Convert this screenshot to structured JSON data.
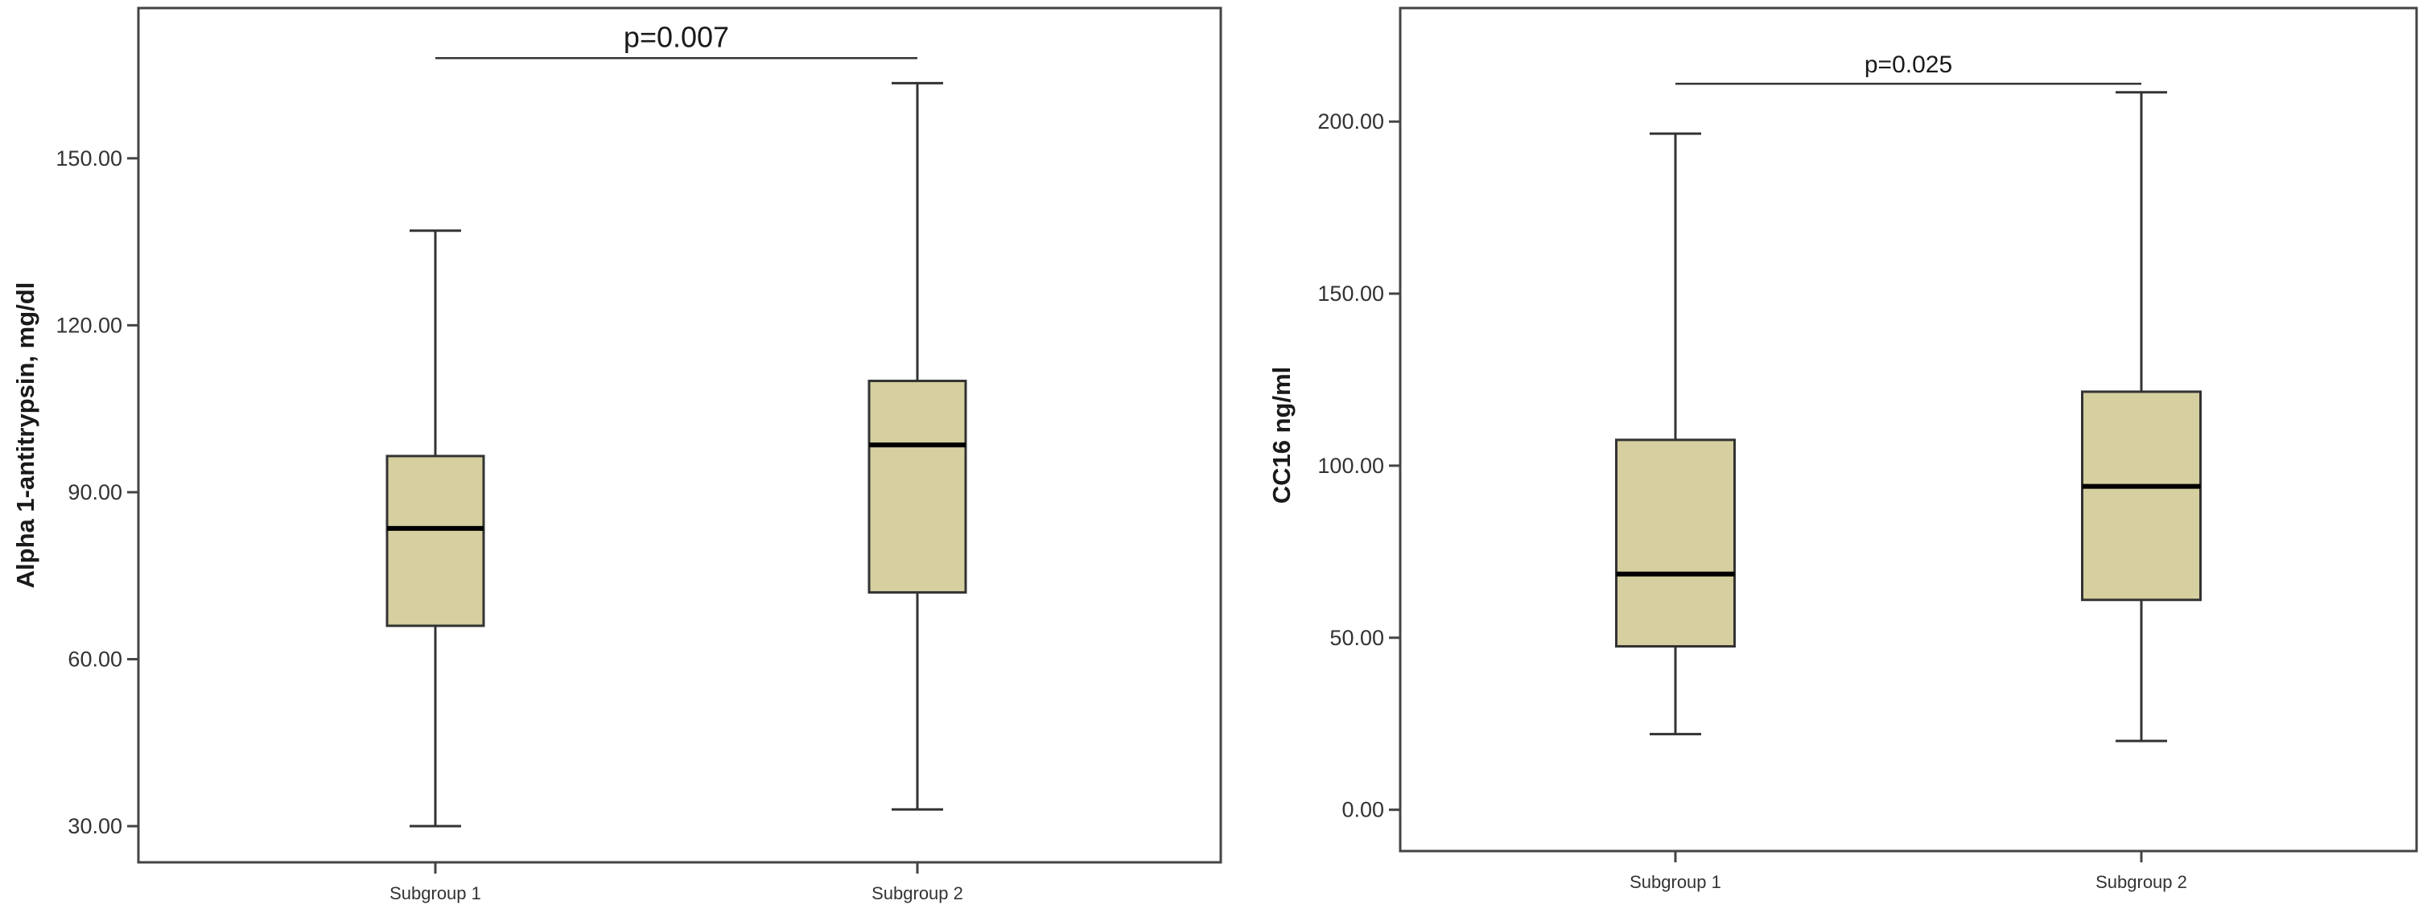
{
  "chart_data": [
    {
      "type": "boxplot",
      "ylabel": "Alpha 1-antitrypsin, mg/dl",
      "categories": [
        "Subgroup 1",
        "Subgroup 2"
      ],
      "boxes": [
        {
          "category": "Subgroup 1",
          "min": 30,
          "q1": 66,
          "median": 83.5,
          "q3": 96.5,
          "max": 137
        },
        {
          "category": "Subgroup 2",
          "min": 33,
          "q1": 72,
          "median": 98.5,
          "q3": 110,
          "max": 163.5
        }
      ],
      "yticks": [
        30,
        60,
        90,
        120,
        150
      ],
      "ytick_labels": [
        "30.00",
        "60.00",
        "90.00",
        "120.00",
        "150.00"
      ],
      "ylim": [
        23.5,
        177
      ],
      "annotation": {
        "text": "p=0.007",
        "value": 168
      },
      "box_color": "#d6cfa0",
      "grid": false
    },
    {
      "type": "boxplot",
      "ylabel": "CC16 ng/ml",
      "categories": [
        "Subgroup 1",
        "Subgroup 2"
      ],
      "boxes": [
        {
          "category": "Subgroup 1",
          "min": 22,
          "q1": 47.5,
          "median": 68.5,
          "q3": 107.5,
          "max": 196.5
        },
        {
          "category": "Subgroup 2",
          "min": 20,
          "q1": 61,
          "median": 94,
          "q3": 121.5,
          "max": 208.5
        }
      ],
      "yticks": [
        0,
        50,
        100,
        150,
        200
      ],
      "ytick_labels": [
        "0.00",
        "50.00",
        "100.00",
        "150.00",
        "200.00"
      ],
      "ylim": [
        -12,
        233
      ],
      "annotation": {
        "text": "p=0.025",
        "value": 211
      },
      "box_color": "#d6cfa0",
      "grid": false
    }
  ]
}
